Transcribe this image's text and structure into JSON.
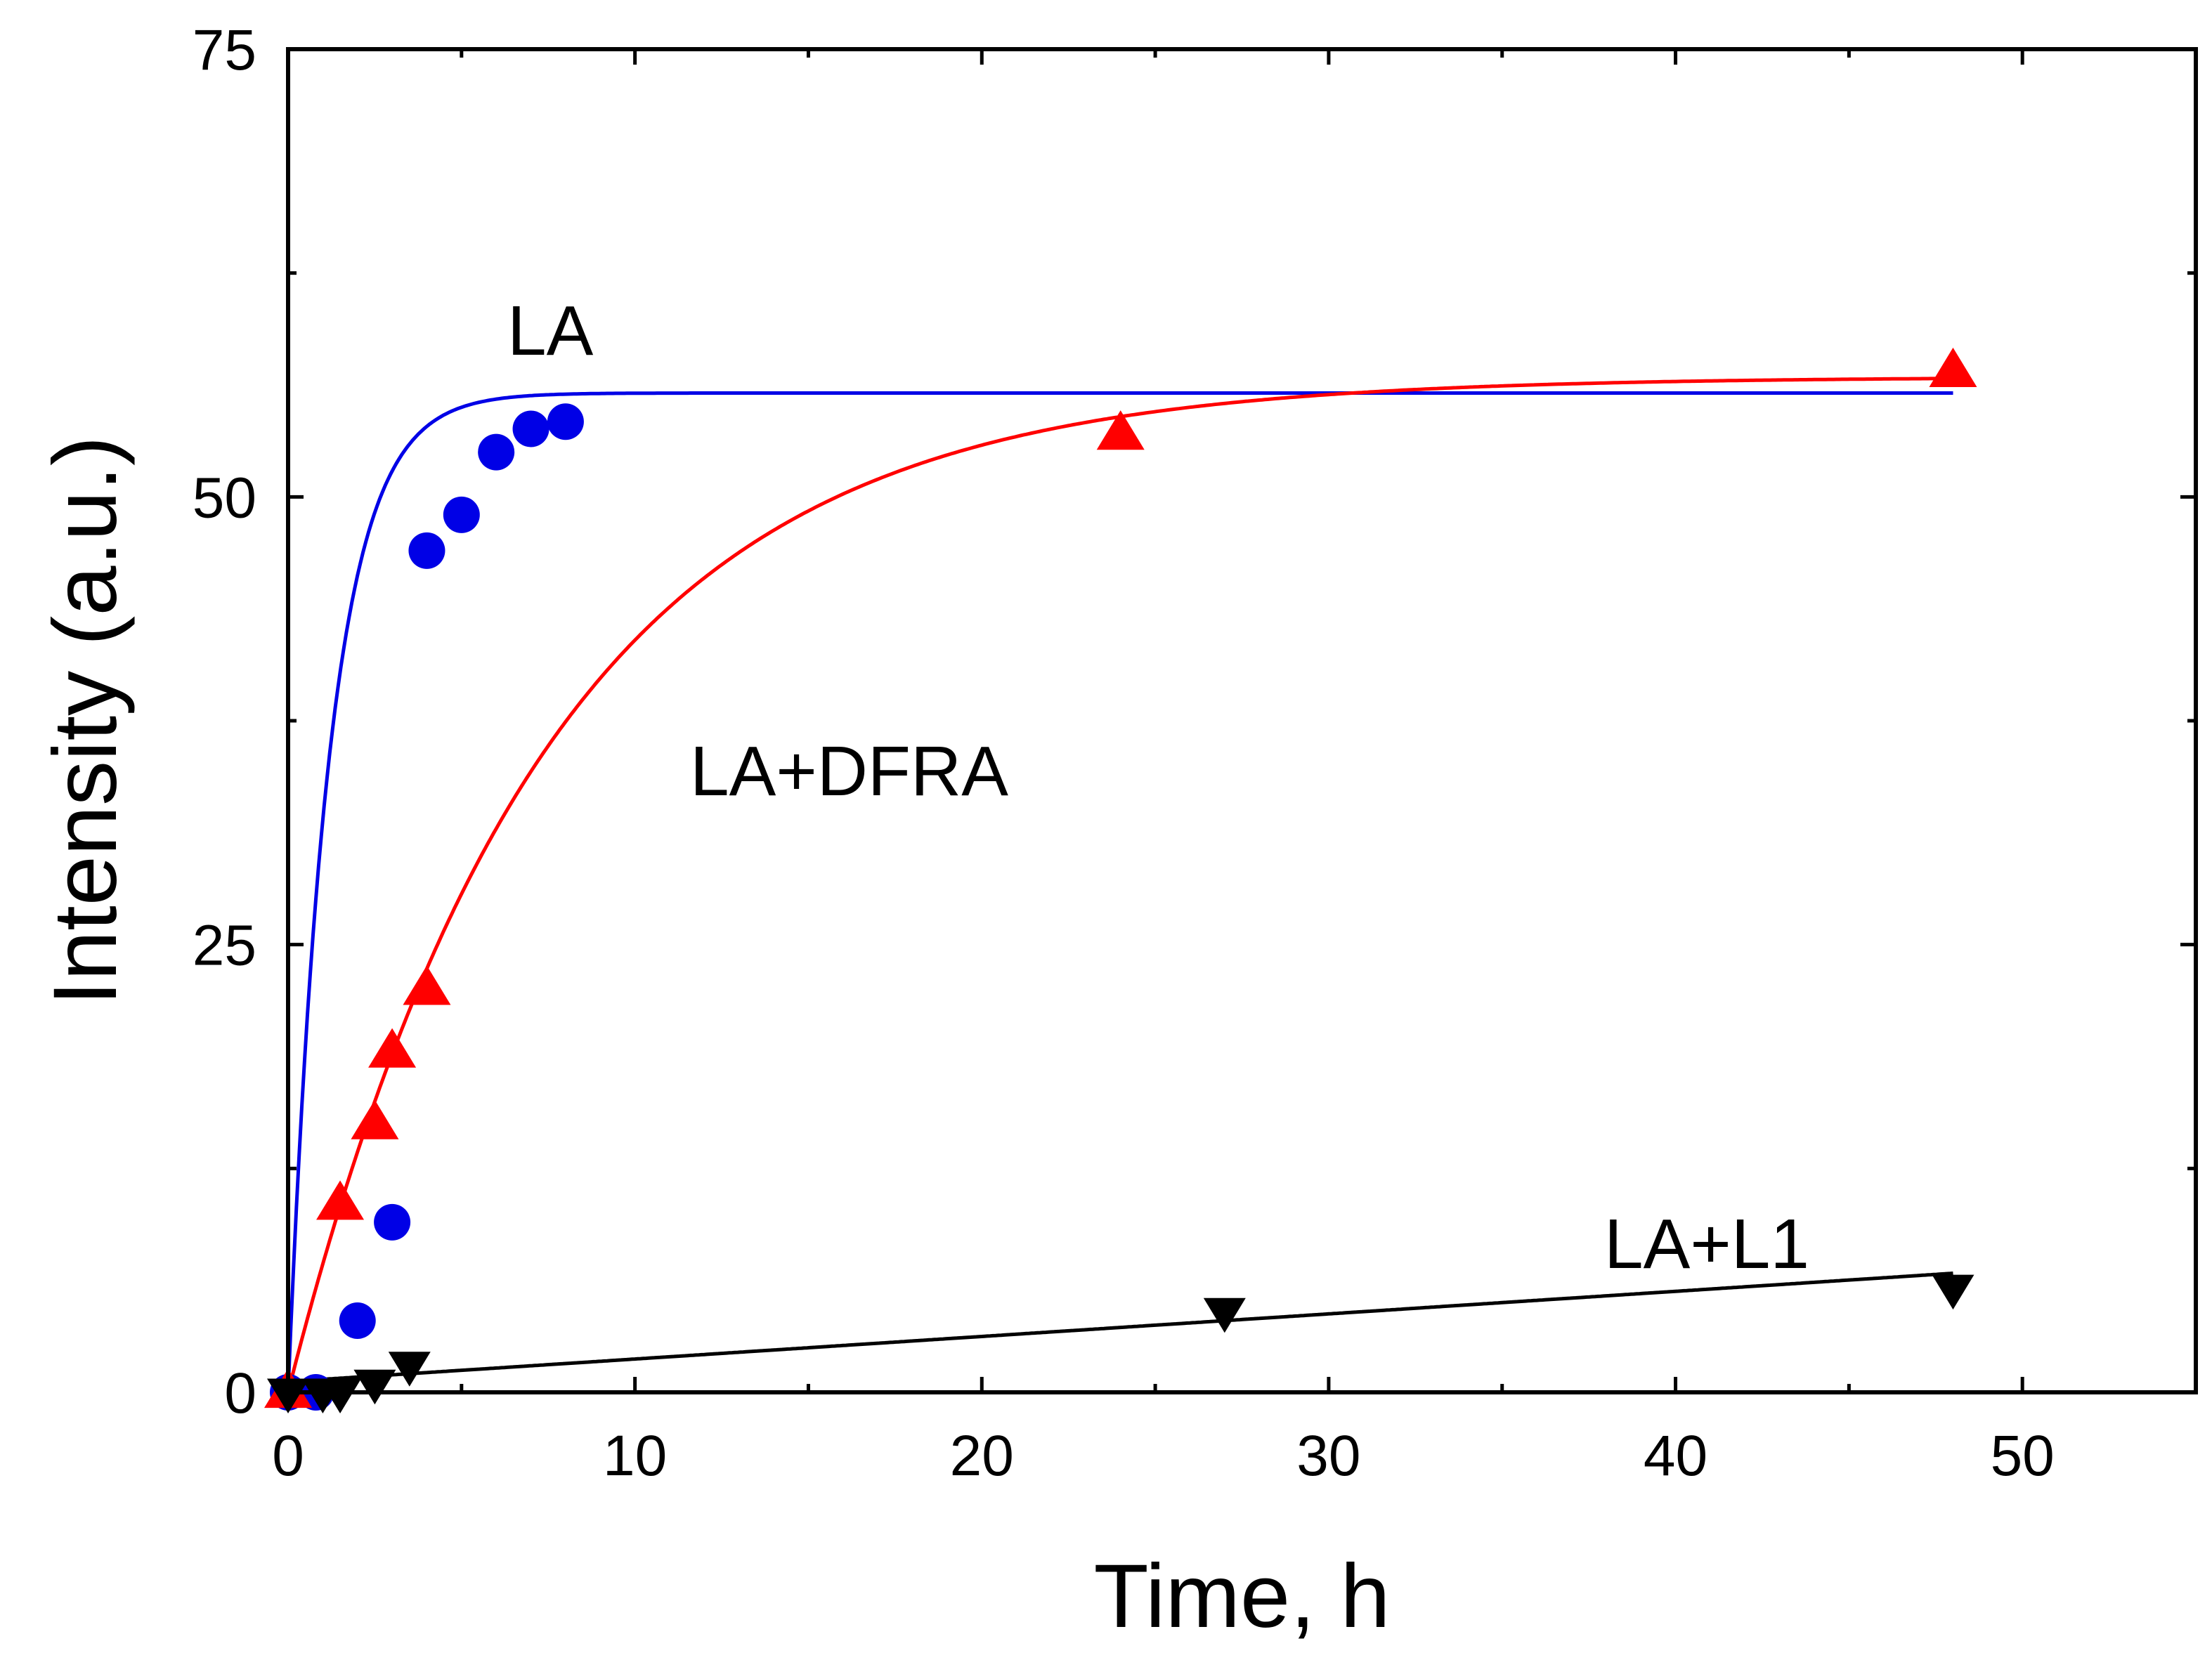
{
  "chart_data": {
    "type": "scatter",
    "title": "",
    "xlabel": "Time, h",
    "ylabel": "Intensity (a.u.)",
    "xlim": [
      0,
      55
    ],
    "ylim": [
      0,
      75
    ],
    "xticks": [
      0,
      10,
      20,
      30,
      40,
      50
    ],
    "yticks": [
      0,
      25,
      50,
      75
    ],
    "xtick_labels": [
      "0",
      "10",
      "20",
      "30",
      "40",
      "50"
    ],
    "ytick_labels": [
      "0",
      "25",
      "50",
      "75"
    ],
    "grid": false,
    "series": [
      {
        "name": "LA",
        "color": "#0000e6",
        "marker": "circle",
        "x": [
          0,
          0.8,
          2,
          3,
          4,
          5,
          6,
          7,
          8
        ],
        "y": [
          0,
          0,
          4,
          9.5,
          47,
          49,
          52.5,
          53.8,
          54.2
        ],
        "fit": {
          "model": "exponential",
          "A": 55.8,
          "k": 0.85,
          "x_end": 48
        }
      },
      {
        "name": "LA+DFRA",
        "color": "#ff0000",
        "marker": "triangle-up",
        "x": [
          0,
          1.5,
          2.5,
          3,
          4,
          24,
          48
        ],
        "y": [
          0,
          10.5,
          15,
          19,
          22.5,
          53.5,
          57
        ],
        "fit": {
          "model": "exponential",
          "A": 56.7,
          "k": 0.135,
          "x_end": 48
        }
      },
      {
        "name": "LA+L1",
        "color": "#000000",
        "marker": "triangle-down",
        "x": [
          0,
          1,
          1.5,
          2.5,
          3.5,
          27,
          48
        ],
        "y": [
          0,
          0,
          0,
          0.5,
          1.5,
          4.5,
          5.8
        ],
        "fit": {
          "model": "linear",
          "intercept": 0.6,
          "slope": 0.126,
          "x_end": 48
        }
      }
    ],
    "annotations": [
      {
        "text": "LA",
        "series": "LA"
      },
      {
        "text": "LA+DFRA",
        "series": "LA+DFRA"
      },
      {
        "text": "LA+L1",
        "series": "LA+L1"
      }
    ]
  }
}
